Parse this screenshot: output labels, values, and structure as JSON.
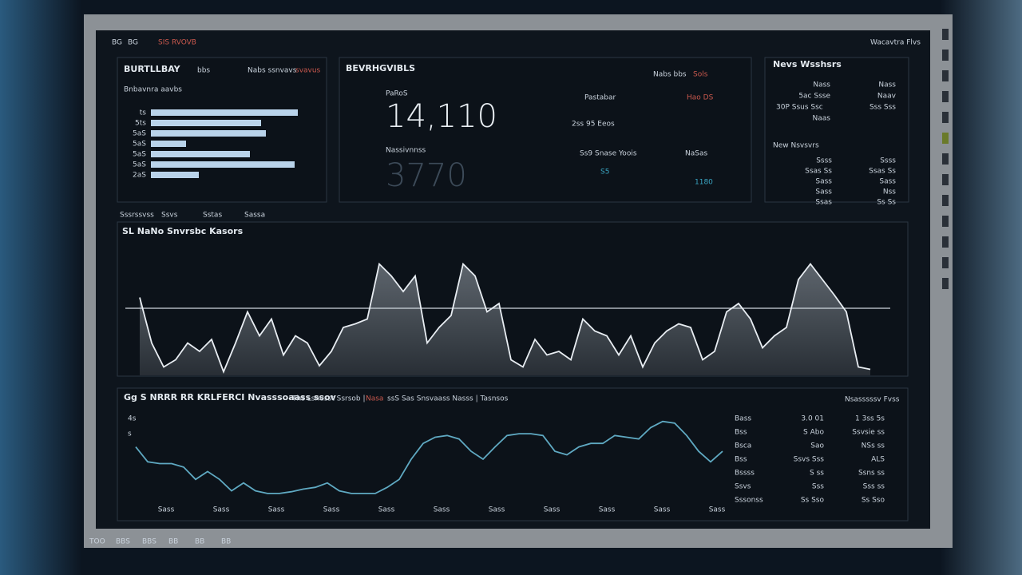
{
  "topbar": {
    "left": [
      "BG",
      "BG",
      "SIS RVOVB"
    ],
    "right": "Wacavtra Flvs"
  },
  "bar_panel": {
    "title": "BURTLLBAY",
    "title_suffix": "bbs",
    "subtitle": "Nabs ssnvavs",
    "subtitle_red": "svavus",
    "heading": "Bnbavnra aavbs"
  },
  "kpi_panel": {
    "title": "BEVRHGVIBLS",
    "header_right": "Nabs bbs",
    "header_right_red": "Sols",
    "label_1": "PaRoS",
    "value_1": "14,110",
    "label_2": "Nassivnnss",
    "value_2": "3770",
    "mid_label": "Pastabar",
    "mid_value": "2ss 95 Eeos",
    "mid_label_2": "Ss9 Snase Yoois",
    "mid_value_2": "S5",
    "right_label": "Hao DS",
    "right_label_2": "NaSas",
    "right_value_2": "1180"
  },
  "list_panel": {
    "title": "Nevs Wsshsrs",
    "rows": [
      [
        "Nass",
        "Nass"
      ],
      [
        "5ac Ssse",
        "Naav"
      ],
      [
        "30P Ssus Ssc",
        "Sss Sss"
      ],
      [
        "Naas",
        ""
      ]
    ],
    "section": "New Nsvsvrs",
    "rows_2": [
      [
        "Ssss",
        "Ssss"
      ],
      [
        "Ssas Ss",
        "Ssas Ss"
      ],
      [
        "Sass",
        "Sass"
      ],
      [
        "Sass",
        "Nss"
      ],
      [
        "Ssas",
        "Ss Ss"
      ]
    ]
  },
  "middle_panel": {
    "legend": [
      "Sssrssvss",
      "Ssvs",
      "Sstas",
      "Sassa"
    ],
    "title": "SL NaNo Snvrsbc Kasors"
  },
  "bottom_panel": {
    "title": "Gg S NRRR RR KRLFERCI Nvasssoaass ssov",
    "title_2": "Ths Lsnusst Ssrsob |",
    "title_red": "Nasa",
    "title_3": "ssS Sas Snsvaass Nasss | Tasnsos",
    "header_right": "Nsasssssv Fvss",
    "left_marks": [
      "4s",
      "s"
    ],
    "table": [
      [
        "Bass",
        "3.0 01",
        "1 3ss 5s"
      ],
      [
        "Bss",
        "S Abo",
        "Ssvsie ss"
      ],
      [
        "Bsca",
        "Sao",
        "NSs ss"
      ],
      [
        "Bss",
        "Ssvs Sss",
        "ALS"
      ],
      [
        "Bssss",
        "S ss",
        "Ssns ss"
      ],
      [
        "Ssvs",
        "Sss",
        "Sss ss"
      ],
      [
        "Sssonss",
        "Ss Sso",
        "Ss Sso"
      ]
    ]
  },
  "taskbar": [
    "TOO",
    "BBS",
    "BBS",
    "BB",
    "BB",
    "BB"
  ],
  "chart_data": [
    {
      "type": "bar",
      "orientation": "horizontal",
      "color": "#b9d3ea",
      "categories": [
        "ts",
        "5ts",
        "5aS",
        "5aS",
        "5aS",
        "5aS",
        "2aS"
      ],
      "values": [
        92,
        69,
        72,
        22,
        62,
        90,
        30
      ],
      "ylim": [
        0,
        100
      ]
    },
    {
      "type": "area",
      "color": "#e8edf2",
      "fill": "#5a636c",
      "values": [
        65,
        27,
        7,
        13,
        27,
        20,
        30,
        3,
        27,
        53,
        33,
        47,
        17,
        33,
        27,
        8,
        20,
        40,
        43,
        47,
        93,
        83,
        70,
        83,
        27,
        40,
        50,
        93,
        83,
        53,
        60,
        13,
        7,
        30,
        17,
        20,
        13,
        47,
        37,
        33,
        17,
        33,
        7,
        27,
        37,
        43,
        40,
        13,
        20,
        53,
        60,
        47,
        23,
        33,
        40,
        80,
        93,
        80,
        67,
        53,
        7,
        5
      ],
      "reference": 56,
      "ylim": [
        0,
        100
      ]
    },
    {
      "type": "line",
      "color": "#5fa9c2",
      "values": [
        64,
        47,
        45,
        45,
        41,
        27,
        36,
        27,
        14,
        23,
        14,
        11,
        11,
        13,
        16,
        18,
        23,
        14,
        11,
        11,
        11,
        18,
        27,
        50,
        68,
        75,
        77,
        73,
        59,
        50,
        64,
        77,
        79,
        79,
        77,
        59,
        55,
        64,
        68,
        68,
        77,
        75,
        73,
        86,
        93,
        91,
        77,
        59,
        47,
        59
      ],
      "xtick_labels": [
        "Sass",
        "Sass",
        "Sass",
        "Sass",
        "Sass",
        "Sass",
        "Sass",
        "Sass",
        "Sass",
        "Sass",
        "Sass"
      ],
      "ylim": [
        0,
        100
      ]
    }
  ]
}
